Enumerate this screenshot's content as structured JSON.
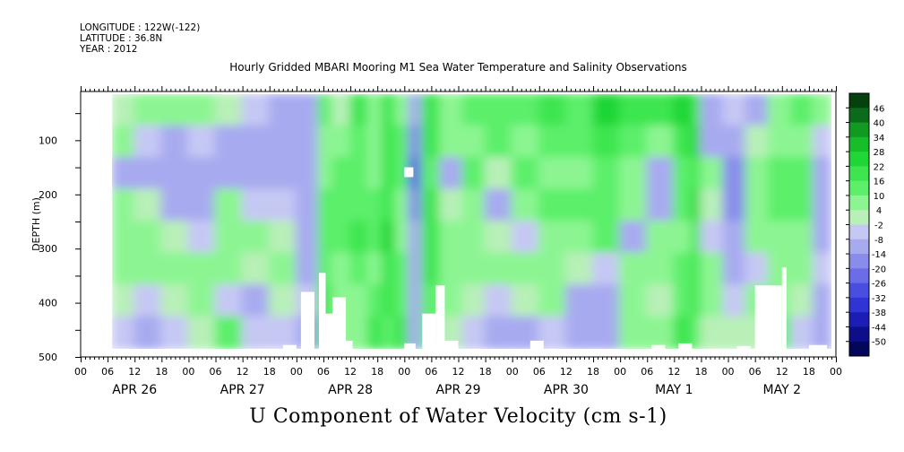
{
  "header": {
    "longitude": "LONGITUDE : 122W(-122)",
    "latitude": "LATITUDE : 36.8N",
    "year": "YEAR : 2012",
    "title": "Hourly Gridded MBARI Mooring M1 Sea Water Temperature and Salinity Observations"
  },
  "footer": {
    "title": "U Component of Water Velocity (cm s-1)"
  },
  "chart_data": {
    "type": "heatmap",
    "title": "Hourly Gridded MBARI Mooring M1 Sea Water Temperature and Salinity Observations",
    "xlabel": "",
    "ylabel": "DEPTH (m)",
    "xlim_hours": [
      0,
      168
    ],
    "ylim": [
      500,
      10
    ],
    "data_x_start_hour": 7,
    "data_x_end_hour": 167,
    "data_depth_top": 15,
    "data_depth_bottom": 485,
    "y_ticks": [
      100,
      200,
      300,
      400,
      500
    ],
    "x_hour_labels": [
      "00",
      "06",
      "12",
      "18",
      "00",
      "06",
      "12",
      "18",
      "00",
      "06",
      "12",
      "18",
      "00",
      "06",
      "12",
      "18",
      "00",
      "06",
      "12",
      "18",
      "00",
      "06",
      "12",
      "18",
      "00",
      "06",
      "12",
      "18",
      "00"
    ],
    "day_labels": [
      {
        "label": "APR 26",
        "hour": 12
      },
      {
        "label": "APR 27",
        "hour": 36
      },
      {
        "label": "APR 28",
        "hour": 60
      },
      {
        "label": "APR 29",
        "hour": 84
      },
      {
        "label": "APR 30",
        "hour": 108
      },
      {
        "label": "MAY  1",
        "hour": 132
      },
      {
        "label": "MAY  2",
        "hour": 156
      }
    ],
    "colorbar": {
      "min": -50,
      "max": 50,
      "labels": [
        "46",
        "40",
        "34",
        "28",
        "22",
        "16",
        "10",
        "4",
        "-2",
        "-8",
        "-14",
        "-20",
        "-26",
        "-32",
        "-38",
        "-44",
        "-50"
      ],
      "colors": [
        "#04410f",
        "#0a6b1a",
        "#109a22",
        "#16bf2a",
        "#1fd636",
        "#3ee550",
        "#5cef6a",
        "#8cf592",
        "#b8f0b8",
        "#c6c8f4",
        "#a8aaf0",
        "#8a8cec",
        "#6a6ce8",
        "#4a4ee0",
        "#3034d4",
        "#1a1eb4",
        "#0c0e8a",
        "#04065c"
      ]
    },
    "columns": [
      {
        "t0": 7,
        "t1": 12,
        "v": [
          4,
          8,
          -6,
          10,
          8,
          6,
          2,
          -4
        ]
      },
      {
        "t0": 12,
        "t1": 18,
        "v": [
          6,
          -4,
          -8,
          4,
          10,
          6,
          -2,
          -6
        ]
      },
      {
        "t0": 18,
        "t1": 24,
        "v": [
          8,
          -6,
          -10,
          -6,
          4,
          8,
          2,
          -4
        ]
      },
      {
        "t0": 24,
        "t1": 30,
        "v": [
          10,
          -2,
          -8,
          -10,
          -4,
          6,
          8,
          2
        ]
      },
      {
        "t0": 30,
        "t1": 36,
        "v": [
          4,
          -8,
          -6,
          6,
          10,
          8,
          -4,
          12
        ]
      },
      {
        "t0": 36,
        "t1": 42,
        "v": [
          -4,
          -10,
          -6,
          -2,
          6,
          4,
          -6,
          -4
        ]
      },
      {
        "t0": 42,
        "t1": 48,
        "v": [
          -6,
          -8,
          -10,
          -4,
          2,
          6,
          2,
          -4
        ]
      },
      {
        "t0": 48,
        "t1": 53,
        "v": [
          -8,
          -6,
          -8,
          -6,
          -10,
          -6,
          -4,
          -6
        ]
      },
      {
        "t0": 53,
        "t1": 56,
        "v": [
          16,
          10,
          8,
          14,
          12,
          14,
          18,
          20
        ]
      },
      {
        "t0": 56,
        "t1": 60,
        "v": [
          4,
          8,
          14,
          12,
          16,
          10,
          6,
          8
        ]
      },
      {
        "t0": 60,
        "t1": 64,
        "v": [
          18,
          16,
          12,
          16,
          20,
          14,
          10,
          6
        ]
      },
      {
        "t0": 64,
        "t1": 67,
        "v": [
          6,
          10,
          8,
          12,
          14,
          10,
          14,
          18
        ]
      },
      {
        "t0": 67,
        "t1": 70,
        "v": [
          22,
          20,
          18,
          22,
          24,
          20,
          18,
          16
        ]
      },
      {
        "t0": 70,
        "t1": 73,
        "v": [
          10,
          12,
          14,
          10,
          8,
          12,
          16,
          20
        ]
      },
      {
        "t0": 73,
        "t1": 76,
        "v": [
          -10,
          -14,
          -18,
          -12,
          -8,
          -6,
          -10,
          -8
        ]
      },
      {
        "t0": 76,
        "t1": 80,
        "v": [
          20,
          18,
          16,
          20,
          22,
          18,
          14,
          12
        ]
      },
      {
        "t0": 80,
        "t1": 85,
        "v": [
          10,
          6,
          -6,
          4,
          10,
          8,
          6,
          4
        ]
      },
      {
        "t0": 85,
        "t1": 90,
        "v": [
          14,
          10,
          12,
          8,
          6,
          10,
          4,
          -4
        ]
      },
      {
        "t0": 90,
        "t1": 96,
        "v": [
          16,
          12,
          4,
          -6,
          4,
          8,
          -4,
          -8
        ]
      },
      {
        "t0": 96,
        "t1": 102,
        "v": [
          12,
          10,
          14,
          8,
          -4,
          6,
          4,
          -6
        ]
      },
      {
        "t0": 102,
        "t1": 108,
        "v": [
          18,
          14,
          10,
          12,
          8,
          6,
          10,
          -4
        ]
      },
      {
        "t0": 108,
        "t1": 114,
        "v": [
          16,
          12,
          6,
          14,
          10,
          4,
          -6,
          -8
        ]
      },
      {
        "t0": 114,
        "t1": 120,
        "v": [
          26,
          20,
          14,
          16,
          12,
          -4,
          -8,
          -6
        ]
      },
      {
        "t0": 120,
        "t1": 126,
        "v": [
          22,
          16,
          10,
          6,
          -6,
          8,
          6,
          10
        ]
      },
      {
        "t0": 126,
        "t1": 132,
        "v": [
          18,
          8,
          -6,
          -8,
          6,
          10,
          4,
          8
        ]
      },
      {
        "t0": 132,
        "t1": 136,
        "v": [
          24,
          18,
          16,
          12,
          10,
          14,
          16,
          18
        ]
      },
      {
        "t0": 136,
        "t1": 138,
        "v": [
          22,
          26,
          20,
          24,
          18,
          20,
          22,
          16
        ]
      },
      {
        "t0": 138,
        "t1": 143,
        "v": [
          -6,
          -8,
          6,
          4,
          -4,
          8,
          6,
          4
        ]
      },
      {
        "t0": 143,
        "t1": 148,
        "v": [
          -4,
          -6,
          -14,
          -16,
          -10,
          -6,
          -4,
          2
        ]
      },
      {
        "t0": 148,
        "t1": 153,
        "v": [
          -8,
          4,
          6,
          10,
          8,
          -4,
          6,
          4
        ]
      },
      {
        "t0": 153,
        "t1": 158,
        "v": [
          10,
          8,
          12,
          14,
          10,
          6,
          10,
          12
        ]
      },
      {
        "t0": 158,
        "t1": 163,
        "v": [
          14,
          10,
          16,
          12,
          6,
          8,
          4,
          -4
        ]
      },
      {
        "t0": 163,
        "t1": 167,
        "v": [
          6,
          -4,
          -8,
          -10,
          -6,
          -4,
          -8,
          -10
        ]
      }
    ],
    "masks": [
      {
        "t0": 49,
        "t1": 52,
        "depth": 380
      },
      {
        "t0": 53,
        "t1": 54.5,
        "depth": 345
      },
      {
        "t0": 54.5,
        "t1": 56,
        "depth": 420
      },
      {
        "t0": 56,
        "t1": 59,
        "depth": 390
      },
      {
        "t0": 59,
        "t1": 60.5,
        "depth": 470
      },
      {
        "t0": 45,
        "t1": 48,
        "depth": 478
      },
      {
        "t0": 72,
        "t1": 74.5,
        "depth": 475
      },
      {
        "t0": 76,
        "t1": 79,
        "depth": 420
      },
      {
        "t0": 79,
        "t1": 81,
        "depth": 368
      },
      {
        "t0": 81,
        "t1": 84,
        "depth": 470
      },
      {
        "t0": 100,
        "t1": 103,
        "depth": 470
      },
      {
        "t0": 127,
        "t1": 130,
        "depth": 478
      },
      {
        "t0": 133,
        "t1": 136,
        "depth": 475
      },
      {
        "t0": 146,
        "t1": 149,
        "depth": 480
      },
      {
        "t0": 150,
        "t1": 156,
        "depth": 368
      },
      {
        "t0": 156,
        "t1": 157,
        "depth": 335
      },
      {
        "t0": 162,
        "t1": 166,
        "depth": 478
      }
    ],
    "gap": {
      "t0": 72,
      "t1": 74,
      "depth0": 150,
      "depth1": 168
    }
  }
}
